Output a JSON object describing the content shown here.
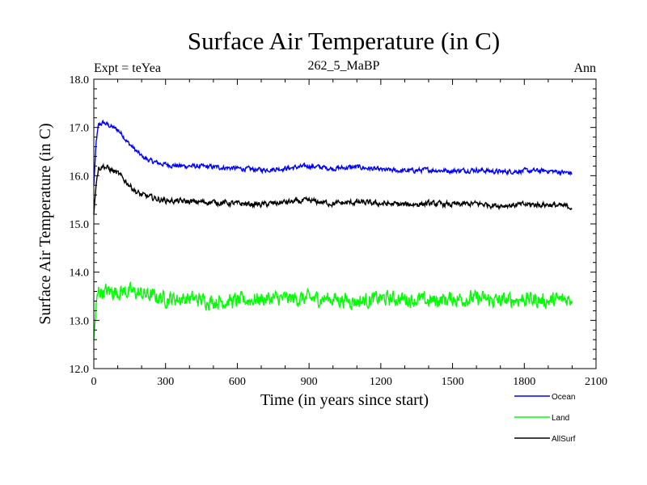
{
  "chart_data": {
    "type": "line",
    "title": "Surface Air Temperature (in C)",
    "subtitle_left": "Expt = teYea",
    "subtitle_center": "262_5_MaBP",
    "subtitle_right": "Ann",
    "xlabel": "Time (in years since start)",
    "ylabel": "Surface Air Temperature (in C)",
    "xlim": [
      0,
      2100
    ],
    "ylim": [
      12.0,
      18.0
    ],
    "xticks": [
      "0",
      "300",
      "600",
      "900",
      "1200",
      "1500",
      "1800",
      "2100"
    ],
    "yticks": [
      "12.0",
      "13.0",
      "14.0",
      "15.0",
      "16.0",
      "17.0",
      "18.0"
    ],
    "legend_position": "bottom-right",
    "series": [
      {
        "name": "Ocean",
        "color": "#0000ff",
        "x": [
          0,
          10,
          20,
          40,
          60,
          80,
          100,
          120,
          140,
          160,
          180,
          200,
          240,
          280,
          320,
          360,
          400,
          500,
          600,
          700,
          800,
          900,
          1000,
          1100,
          1200,
          1300,
          1400,
          1500,
          1600,
          1700,
          1800,
          1900,
          2000
        ],
        "values": [
          15.8,
          16.7,
          17.05,
          17.1,
          17.05,
          17.0,
          16.95,
          16.85,
          16.7,
          16.6,
          16.5,
          16.4,
          16.3,
          16.25,
          16.22,
          16.2,
          16.2,
          16.18,
          16.15,
          16.12,
          16.15,
          16.2,
          16.15,
          16.18,
          16.12,
          16.1,
          16.12,
          16.1,
          16.12,
          16.08,
          16.1,
          16.1,
          16.05
        ]
      },
      {
        "name": "Land",
        "color": "#00ff00",
        "x": [
          0,
          10,
          20,
          50,
          100,
          150,
          200,
          300,
          400,
          500,
          600,
          700,
          800,
          900,
          1000,
          1100,
          1200,
          1300,
          1400,
          1500,
          1600,
          1700,
          1800,
          1900,
          2000
        ],
        "values": [
          12.6,
          13.3,
          13.6,
          13.6,
          13.6,
          13.6,
          13.55,
          13.45,
          13.45,
          13.4,
          13.4,
          13.45,
          13.45,
          13.45,
          13.45,
          13.4,
          13.45,
          13.45,
          13.4,
          13.45,
          13.45,
          13.4,
          13.45,
          13.4,
          13.45
        ]
      },
      {
        "name": "AllSurf",
        "color": "#000000",
        "x": [
          0,
          10,
          20,
          40,
          60,
          80,
          100,
          120,
          140,
          160,
          180,
          200,
          240,
          280,
          320,
          360,
          400,
          500,
          600,
          700,
          800,
          900,
          1000,
          1100,
          1200,
          1300,
          1400,
          1500,
          1600,
          1700,
          1800,
          1900,
          2000
        ],
        "values": [
          15.2,
          15.9,
          16.15,
          16.2,
          16.15,
          16.1,
          16.05,
          15.95,
          15.85,
          15.75,
          15.65,
          15.6,
          15.55,
          15.5,
          15.48,
          15.47,
          15.46,
          15.45,
          15.42,
          15.4,
          15.45,
          15.48,
          15.42,
          15.45,
          15.42,
          15.4,
          15.42,
          15.4,
          15.42,
          15.38,
          15.4,
          15.4,
          15.35
        ]
      }
    ]
  }
}
